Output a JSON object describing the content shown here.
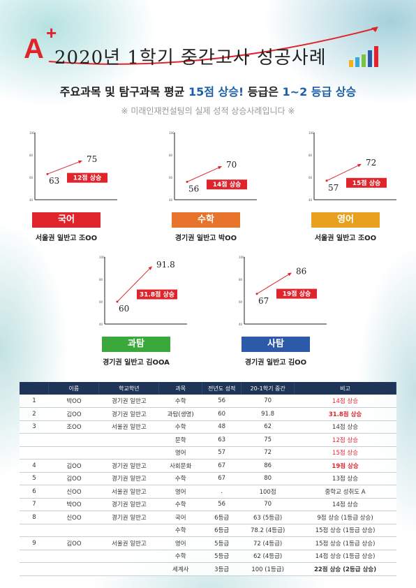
{
  "header": {
    "logo_a": "A",
    "logo_plus": "+",
    "title": "2020년 1학기 중간고사 성공사례"
  },
  "subtitle": {
    "part1": "주요과목 및 탐구과목 평균 ",
    "highlight1": "15점 상승!",
    "part2": " 등급은 ",
    "highlight2": "1~2 등급 상승"
  },
  "note": "※ 미래인재컨설팅의 실제 성적 상승사례입니다 ※",
  "chart_data": [
    {
      "type": "line",
      "subject": "국어",
      "color": "#e0242c",
      "student": "서울권 일반고 조OO",
      "x": [
        "before",
        "after"
      ],
      "values": [
        63,
        75
      ],
      "value_labels": [
        "63",
        "75"
      ],
      "rise_label": "12점 상승",
      "ylim": [
        40,
        100
      ],
      "yticks": [
        "40",
        "60",
        "80",
        "100"
      ]
    },
    {
      "type": "line",
      "subject": "수학",
      "color": "#e8732a",
      "student": "경기권 일반고 박OO",
      "x": [
        "before",
        "after"
      ],
      "values": [
        56,
        70
      ],
      "value_labels": [
        "56",
        "70"
      ],
      "rise_label": "14점 상승",
      "ylim": [
        40,
        100
      ],
      "yticks": [
        "40",
        "60",
        "80",
        "100"
      ]
    },
    {
      "type": "line",
      "subject": "영어",
      "color": "#e8a020",
      "student": "서울권 일반고 조OO",
      "x": [
        "before",
        "after"
      ],
      "values": [
        57,
        72
      ],
      "value_labels": [
        "57",
        "72"
      ],
      "rise_label": "15점 상승",
      "ylim": [
        40,
        100
      ],
      "yticks": [
        "40",
        "60",
        "80",
        "100"
      ]
    },
    {
      "type": "line",
      "subject": "과탐",
      "color": "#3aa83a",
      "student": "경기권 일반고 김OOA",
      "x": [
        "before",
        "after"
      ],
      "values": [
        60,
        91.8
      ],
      "value_labels": [
        "60",
        "91.8"
      ],
      "rise_label": "31.8점 상승",
      "ylim": [
        40,
        100
      ],
      "yticks": [
        "40",
        "60",
        "80",
        "100"
      ]
    },
    {
      "type": "line",
      "subject": "사탐",
      "color": "#2c5aa8",
      "student": "경기권 일반고 김OO",
      "x": [
        "before",
        "after"
      ],
      "values": [
        67,
        86
      ],
      "value_labels": [
        "67",
        "86"
      ],
      "rise_label": "19점 상승",
      "ylim": [
        40,
        100
      ],
      "yticks": [
        "40",
        "60",
        "80",
        "100"
      ]
    }
  ],
  "table": {
    "headers": [
      "",
      "이름",
      "학교학년",
      "과목",
      "전년도 성적",
      "20-1학기 중간",
      "비고"
    ],
    "rows": [
      {
        "cells": [
          "1",
          "박OO",
          "경기권 일반고",
          "수학",
          "56",
          "70",
          "14점 상승"
        ],
        "red": true,
        "bold": false
      },
      {
        "cells": [
          "2",
          "김OO",
          "경기권 일반고",
          "과탐(생명)",
          "60",
          "91.8",
          "31.8점 상승"
        ],
        "red": true,
        "bold": true
      },
      {
        "cells": [
          "3",
          "조OO",
          "서울권 일반고",
          "수학",
          "48",
          "62",
          "14점 상승"
        ],
        "red": false,
        "bold": false
      },
      {
        "cells": [
          "",
          "",
          "",
          "문학",
          "63",
          "75",
          "12점 상승"
        ],
        "red": true,
        "bold": false
      },
      {
        "cells": [
          "",
          "",
          "",
          "영어",
          "57",
          "72",
          "15점 상승"
        ],
        "red": true,
        "bold": false
      },
      {
        "cells": [
          "4",
          "김OO",
          "경기권 일반고",
          "사회문화",
          "67",
          "86",
          "19점 상승"
        ],
        "red": true,
        "bold": true
      },
      {
        "cells": [
          "5",
          "김OO",
          "경기권 일반고",
          "수학",
          "67",
          "80",
          "13점 상승"
        ],
        "red": false,
        "bold": false
      },
      {
        "cells": [
          "6",
          "신OO",
          "서울권 일반고",
          "영어",
          ".",
          "100점",
          "중학교 성취도 A"
        ],
        "red": false,
        "bold": false
      },
      {
        "cells": [
          "7",
          "박OO",
          "경기권 일반고",
          "수학",
          "56",
          "70",
          "14점 상승"
        ],
        "red": false,
        "bold": false
      },
      {
        "cells": [
          "8",
          "신OO",
          "경기권 일반고",
          "국어",
          "6등급",
          "63 (5등급)",
          "9점 상승 (1등급 상승)"
        ],
        "red": false,
        "bold": false
      },
      {
        "cells": [
          "",
          "",
          "",
          "수학",
          "6등급",
          "78.2 (4등급)",
          "15점 상승 (1등급 상승)"
        ],
        "red": false,
        "bold": false
      },
      {
        "cells": [
          "9",
          "김OO",
          "서울권 일반고",
          "영어",
          "5등급",
          "72 (4등급)",
          "15점 상승 (1등급 상승)"
        ],
        "red": false,
        "bold": false
      },
      {
        "cells": [
          "",
          "",
          "",
          "수학",
          "5등급",
          "62 (4등급)",
          "14점 상승 (1등급 상승)"
        ],
        "red": false,
        "bold": false
      },
      {
        "cells": [
          "",
          "",
          "",
          "세계사",
          "3등급",
          "100 (1등급)",
          "22점 상승 (2등급 상승)"
        ],
        "red": false,
        "bold": true
      }
    ]
  }
}
